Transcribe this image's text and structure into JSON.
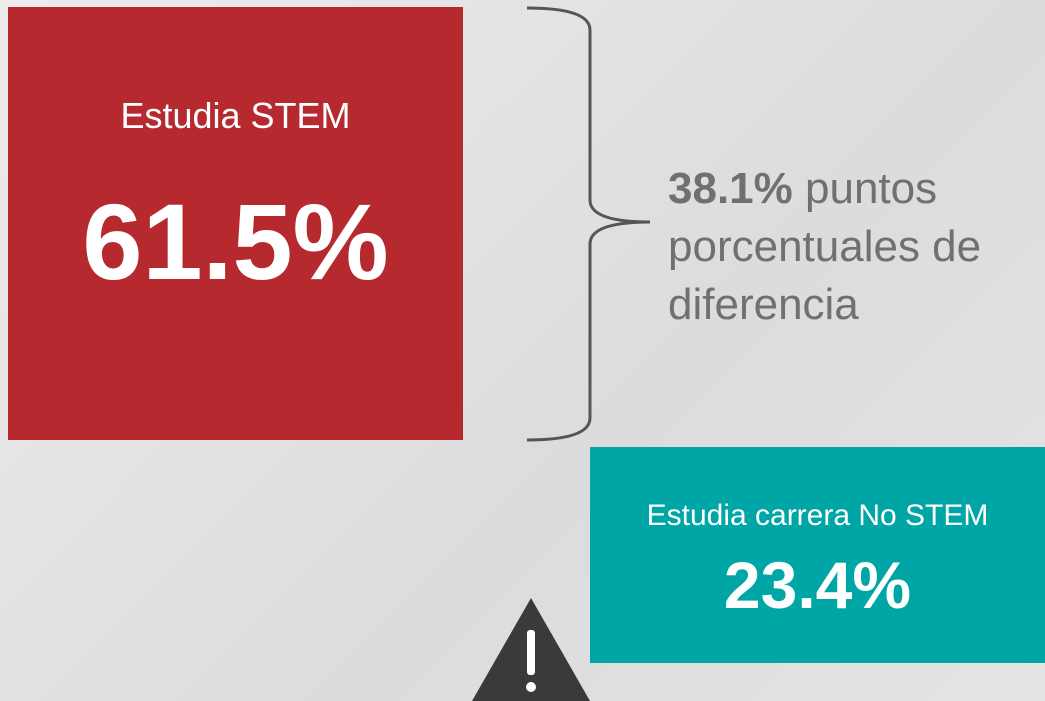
{
  "stem": {
    "label": "Estudia STEM",
    "value": "61.5%"
  },
  "difference": {
    "value": "38.1%",
    "text": "puntos porcentuales de diferencia"
  },
  "no_stem": {
    "label": "Estudia carrera No STEM",
    "value": "23.4%"
  }
}
